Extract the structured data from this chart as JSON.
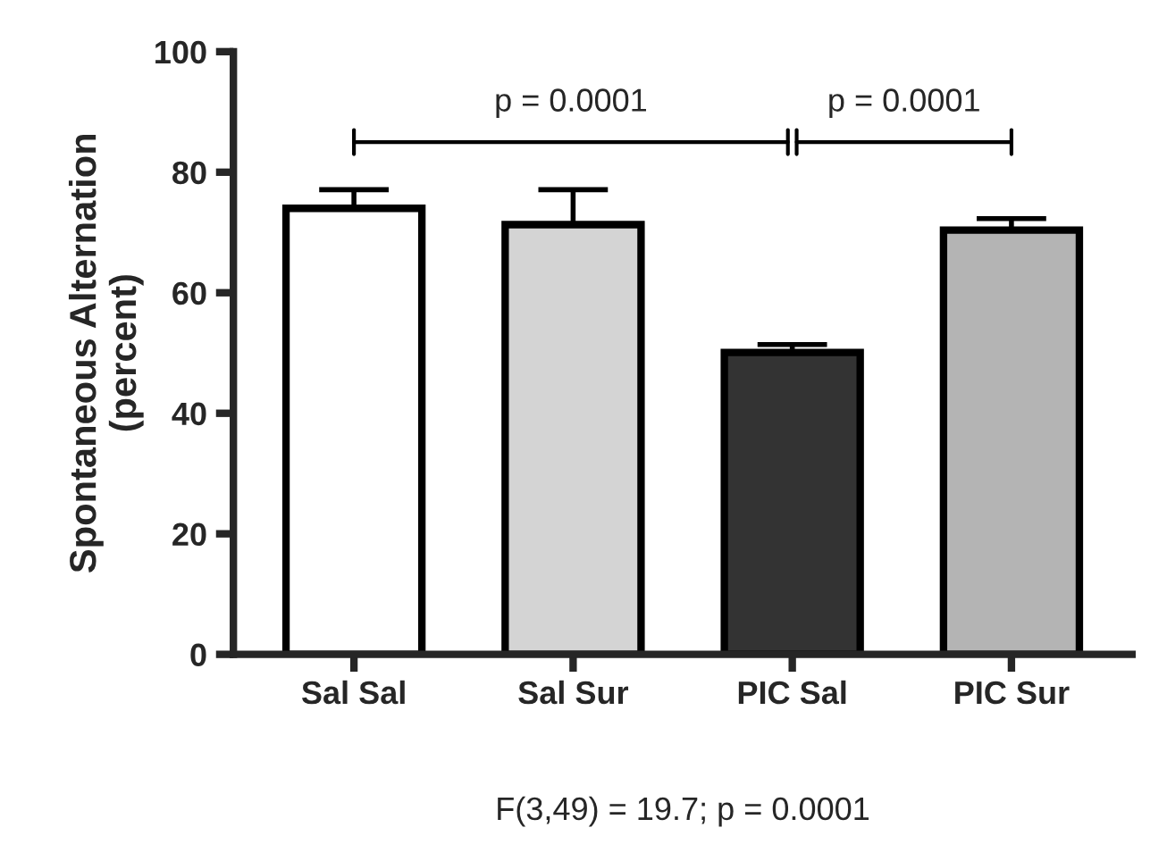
{
  "chart_data": {
    "type": "bar",
    "ylabel": "Spontaneous Alternation\n(percent)",
    "categories": [
      "Sal Sal",
      "Sal Sur",
      "PIC Sal",
      "PIC Sur"
    ],
    "values": [
      74,
      71.3,
      50.1,
      70.4
    ],
    "errors": [
      [
        74,
        77.1
      ],
      [
        71.3,
        77.1
      ],
      [
        50.1,
        51.4
      ],
      [
        70.4,
        72.3
      ]
    ],
    "colors": [
      "#ffffff",
      "#d4d4d4",
      "#333333",
      "#b4b4b4"
    ],
    "ylim": [
      0,
      100
    ],
    "yticks": [
      0,
      20,
      40,
      60,
      80,
      100
    ],
    "grid": false,
    "legend": false,
    "annotations": [
      "p = 0.0001",
      "p = 0.0001",
      "F(3,49) = 19.7; p = 0.0001"
    ]
  }
}
